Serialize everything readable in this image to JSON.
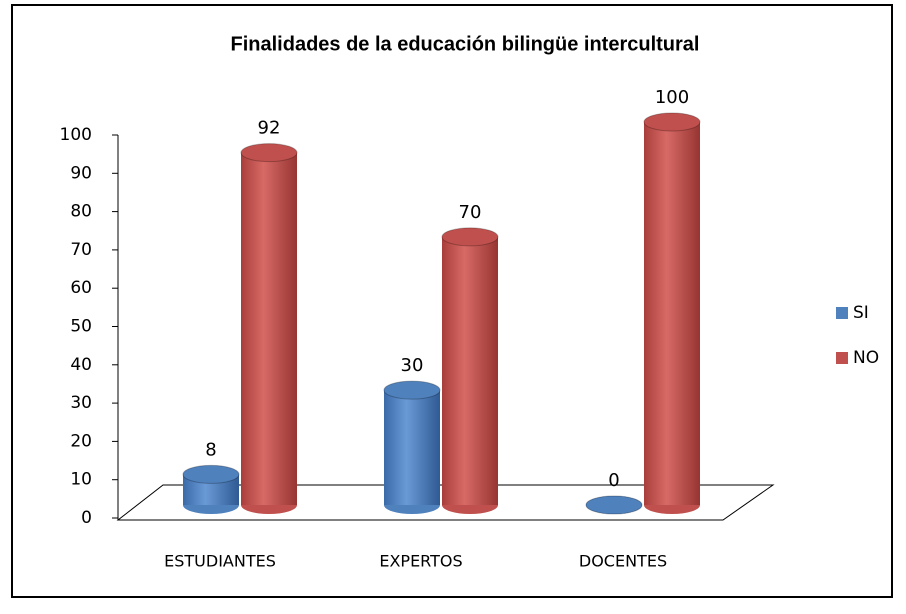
{
  "chart_data": {
    "type": "bar3d",
    "title": "Finalidades de la educación bilingüe intercultural",
    "categories": [
      "ESTUDIANTES",
      "EXPERTOS",
      "DOCENTES"
    ],
    "series": [
      {
        "name": "SI",
        "color": "#4f81bd",
        "values": [
          8,
          30,
          0
        ]
      },
      {
        "name": "NO",
        "color": "#c0504d",
        "values": [
          92,
          70,
          100
        ]
      }
    ],
    "ylim": [
      0,
      100
    ],
    "yticks": [
      0,
      10,
      20,
      30,
      40,
      50,
      60,
      70,
      80,
      90,
      100
    ],
    "legend": "right"
  }
}
